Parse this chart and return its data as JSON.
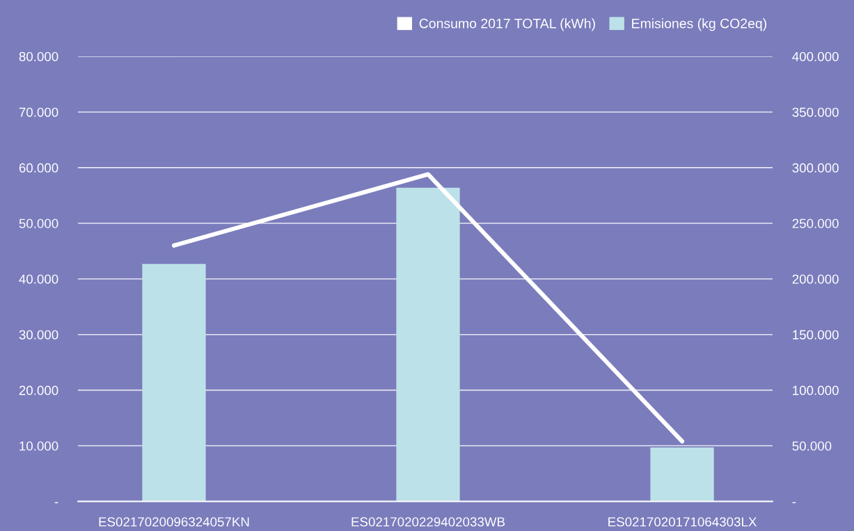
{
  "chart_data": {
    "type": "bar",
    "categories": [
      "ES0217020096324057KN",
      "ES0217020229402033WB",
      "ES0217020171064303LX"
    ],
    "series": [
      {
        "name": "Consumo 2017 TOTAL (kWh)",
        "type": "line",
        "axis": "y2",
        "color": "#ffffff",
        "values": [
          230000,
          294000,
          54000
        ]
      },
      {
        "name": "Emisiones (kg CO2eq)",
        "color": "#bde1e8",
        "values": [
          42700,
          56400,
          9700
        ]
      }
    ],
    "ylim": [
      0,
      80000
    ],
    "yticks": [
      {
        "value": 0,
        "label": "-"
      },
      {
        "value": 10000,
        "label": "10.000"
      },
      {
        "value": 20000,
        "label": "20.000"
      },
      {
        "value": 30000,
        "label": "30.000"
      },
      {
        "value": 40000,
        "label": "40.000"
      },
      {
        "value": 50000,
        "label": "50.000"
      },
      {
        "value": 60000,
        "label": "60.000"
      },
      {
        "value": 70000,
        "label": "70.000"
      },
      {
        "value": 80000,
        "label": "80.000"
      }
    ],
    "y2lim": [
      0,
      400000
    ],
    "y2ticks": [
      {
        "value": 0,
        "label": "-"
      },
      {
        "value": 50000,
        "label": "50.000"
      },
      {
        "value": 100000,
        "label": "100.000"
      },
      {
        "value": 150000,
        "label": "150.000"
      },
      {
        "value": 200000,
        "label": "200.000"
      },
      {
        "value": 250000,
        "label": "250.000"
      },
      {
        "value": 300000,
        "label": "300.000"
      },
      {
        "value": 350000,
        "label": "350.000"
      },
      {
        "value": 400000,
        "label": "400.000"
      }
    ],
    "grid": "y",
    "legend": "top right",
    "line_style": "solid"
  }
}
